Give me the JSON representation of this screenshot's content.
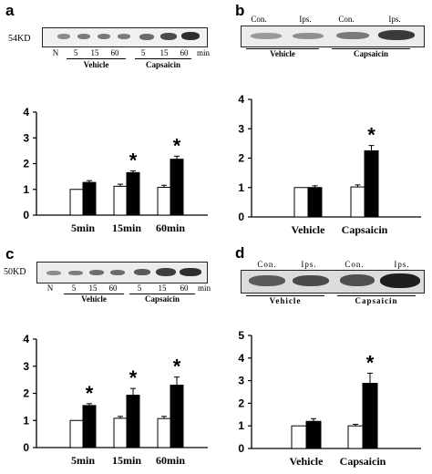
{
  "panels": {
    "a": {
      "letter": "a",
      "blot": {
        "size_label": "54KD",
        "lanes": [
          "N",
          "5",
          "15",
          "60",
          "5",
          "15",
          "60"
        ],
        "unit": "min",
        "groups": [
          "Vehicle",
          "Capsaicin"
        ]
      },
      "chart_index": 0
    },
    "b": {
      "letter": "b",
      "blot": {
        "lanes": [
          "Con.",
          "Ips.",
          "Con.",
          "Ips."
        ],
        "groups": [
          "Vehicle",
          "Capsaicin"
        ]
      },
      "chart_index": 1
    },
    "c": {
      "letter": "c",
      "blot": {
        "size_label": "50KD",
        "lanes": [
          "N",
          "5",
          "15",
          "60",
          "5",
          "15",
          "60"
        ],
        "unit": "min",
        "groups": [
          "Vehicle",
          "Capsaicin"
        ]
      },
      "chart_index": 2
    },
    "d": {
      "letter": "d",
      "blot": {
        "lanes": [
          "Con.",
          "Ips.",
          "Con.",
          "Ips."
        ],
        "groups": [
          "Vehicle",
          "Capsaicin"
        ]
      },
      "chart_index": 3
    }
  },
  "chart_data": [
    {
      "type": "bar",
      "categories": [
        "5min",
        "15min",
        "60min"
      ],
      "series": [
        {
          "fill": "white",
          "values": [
            1.0,
            1.12,
            1.08
          ],
          "err": [
            0.0,
            0.08,
            0.08
          ]
        },
        {
          "fill": "black",
          "values": [
            1.27,
            1.65,
            2.17
          ],
          "err": [
            0.07,
            0.07,
            0.12
          ]
        }
      ],
      "significance": [
        "",
        "*",
        "*"
      ],
      "ylim": [
        0,
        4
      ],
      "yticks": [
        0,
        1,
        2,
        3,
        4
      ]
    },
    {
      "type": "bar",
      "categories": [
        "Vehicle",
        "Capsaicin"
      ],
      "series": [
        {
          "fill": "white",
          "values": [
            1.0,
            1.02
          ],
          "err": [
            0.0,
            0.07
          ]
        },
        {
          "fill": "black",
          "values": [
            1.0,
            2.25
          ],
          "err": [
            0.06,
            0.18
          ]
        }
      ],
      "significance": [
        "",
        "*"
      ],
      "ylim": [
        0,
        4
      ],
      "yticks": [
        0,
        1,
        2,
        3,
        4
      ]
    },
    {
      "type": "bar",
      "categories": [
        "5min",
        "15min",
        "60min"
      ],
      "series": [
        {
          "fill": "white",
          "values": [
            1.0,
            1.08,
            1.07
          ],
          "err": [
            0.0,
            0.07,
            0.08
          ]
        },
        {
          "fill": "black",
          "values": [
            1.55,
            1.93,
            2.3
          ],
          "err": [
            0.07,
            0.25,
            0.3
          ]
        }
      ],
      "significance": [
        "*",
        "*",
        "*"
      ],
      "ylim": [
        0,
        4
      ],
      "yticks": [
        0,
        1,
        2,
        3,
        4
      ]
    },
    {
      "type": "bar",
      "categories": [
        "Vehicle",
        "Capsaicin"
      ],
      "series": [
        {
          "fill": "white",
          "values": [
            1.0,
            1.0
          ],
          "err": [
            0.0,
            0.07
          ]
        },
        {
          "fill": "black",
          "values": [
            1.2,
            2.88
          ],
          "err": [
            0.12,
            0.45
          ]
        }
      ],
      "significance": [
        "",
        "*"
      ],
      "ylim": [
        0,
        5
      ],
      "yticks": [
        0,
        1,
        2,
        3,
        4,
        5
      ]
    }
  ]
}
